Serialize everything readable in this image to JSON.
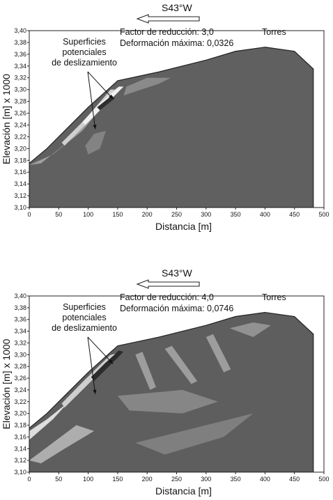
{
  "chart_data": [
    {
      "type": "heatmap",
      "direction": "S43°W",
      "annotation_lines": [
        "Factor de reducción: 3,0",
        "Deformación máxima: 0,0326"
      ],
      "site_label": "Torres",
      "callout": [
        "Superficies",
        "potenciales",
        "de deslizamiento"
      ],
      "xlabel": "Distancia [m]",
      "ylabel": "Elevación [m] x 1000",
      "xlim": [
        0,
        500
      ],
      "ylim": [
        3.1,
        3.4
      ],
      "x_ticks": [
        "0",
        "50",
        "100",
        "150",
        "200",
        "250",
        "300",
        "350",
        "400",
        "450",
        "500"
      ],
      "y_ticks": [
        "3,10",
        "3,12",
        "3,14",
        "3,16",
        "3,18",
        "3,20",
        "3,22",
        "3,24",
        "3,26",
        "3,28",
        "3,30",
        "3,32",
        "3,34",
        "3,36",
        "3,38",
        "3,40"
      ],
      "profile": {
        "x": [
          0,
          30,
          70,
          100,
          150,
          220,
          300,
          350,
          400,
          450,
          482
        ],
        "y": [
          3.175,
          3.2,
          3.24,
          3.27,
          3.315,
          3.33,
          3.35,
          3.365,
          3.372,
          3.365,
          3.335
        ]
      },
      "colors": {
        "background": "#606060",
        "band_light": "#a6a6a6",
        "band_lighter": "#d0d0d0",
        "band_white": "#f2f2f2",
        "band_dark": "#2e2e2e"
      }
    },
    {
      "type": "heatmap",
      "direction": "S43°W",
      "annotation_lines": [
        "Factor de reducción: 4,0",
        "Deformación máxima: 0,0746"
      ],
      "site_label": "Torres",
      "callout": [
        "Superficies",
        "potenciales",
        "de deslizamiento"
      ],
      "xlabel": "Distancia [m]",
      "ylabel": "Elevación [m] x 1000",
      "xlim": [
        0,
        500
      ],
      "ylim": [
        3.1,
        3.4
      ],
      "x_ticks": [
        "0",
        "50",
        "100",
        "150",
        "200",
        "250",
        "300",
        "350",
        "400",
        "450",
        "500"
      ],
      "y_ticks": [
        "3,10",
        "3,12",
        "3,14",
        "3,16",
        "3,18",
        "3,20",
        "3,22",
        "3,24",
        "3,26",
        "3,28",
        "3,30",
        "3,32",
        "3,34",
        "3,36",
        "3,38",
        "3,40"
      ],
      "profile": {
        "x": [
          0,
          30,
          70,
          100,
          150,
          220,
          300,
          350,
          400,
          450,
          482
        ],
        "y": [
          3.175,
          3.2,
          3.24,
          3.27,
          3.315,
          3.33,
          3.35,
          3.365,
          3.372,
          3.365,
          3.335
        ]
      },
      "colors": {
        "background": "#5e5e5e",
        "band_light": "#a8a8a8",
        "band_lighter": "#cfcfcf",
        "band_white": "#f4f4f4",
        "band_dark": "#2c2c2c"
      }
    }
  ]
}
